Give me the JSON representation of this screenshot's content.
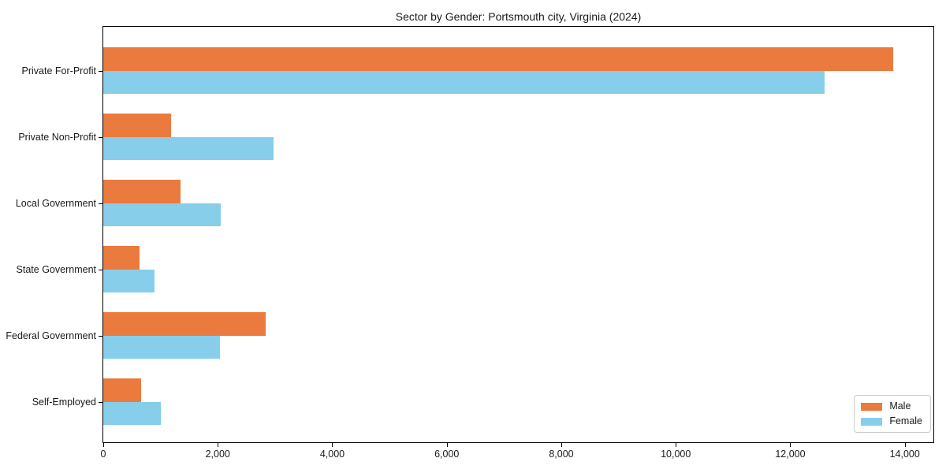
{
  "chart_data": {
    "type": "bar",
    "orientation": "horizontal",
    "title": "Sector by Gender: Portsmouth city, Virginia (2024)",
    "categories": [
      "Private For-Profit",
      "Private Non-Profit",
      "Local Government",
      "State Government",
      "Federal Government",
      "Self-Employed"
    ],
    "series": [
      {
        "name": "Male",
        "color": "#EB7A3E",
        "values": [
          13800,
          1180,
          1350,
          640,
          2830,
          660
        ]
      },
      {
        "name": "Female",
        "color": "#87CEEB",
        "values": [
          12600,
          2970,
          2050,
          900,
          2040,
          1000
        ]
      }
    ],
    "xlabel": "",
    "ylabel": "",
    "xlim": [
      0,
      14500
    ],
    "xticks": [
      0,
      2000,
      4000,
      6000,
      8000,
      10000,
      12000,
      14000
    ],
    "grid": false,
    "legend_position": "lower right"
  }
}
